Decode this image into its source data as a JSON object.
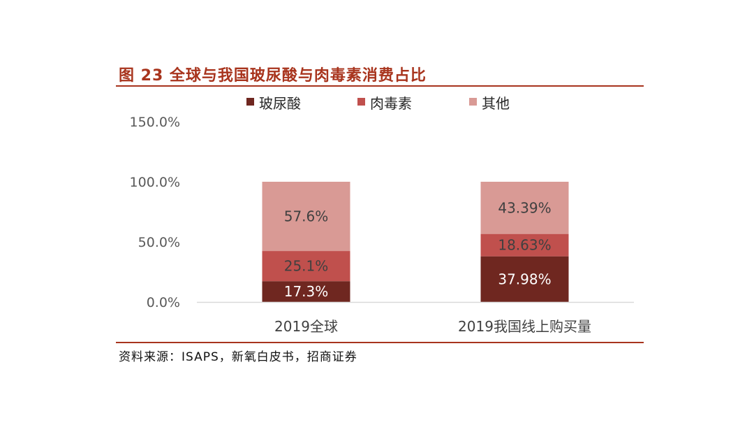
{
  "figure": {
    "title": "图 23  全球与我国玻尿酸与肉毒素消费占比",
    "source": "资料来源：ISAPS，新氧白皮书，招商证券"
  },
  "chart_data": {
    "type": "bar",
    "stacked": true,
    "categories": [
      "2019全球",
      "2019我国线上购买量"
    ],
    "series": [
      {
        "name": "玻尿酸",
        "values": [
          17.3,
          37.98
        ],
        "labels": [
          "17.3%",
          "37.98%"
        ],
        "color": "#6f2720"
      },
      {
        "name": "肉毒素",
        "values": [
          25.1,
          18.63
        ],
        "labels": [
          "25.1%",
          "18.63%"
        ],
        "color": "#c0504d"
      },
      {
        "name": "其他",
        "values": [
          57.6,
          43.39
        ],
        "labels": [
          "57.6%",
          "43.39%"
        ],
        "color": "#d99a95"
      }
    ],
    "ylim": [
      0,
      150
    ],
    "yticks": [
      0,
      50,
      100,
      150
    ],
    "ytick_labels": [
      "0.0%",
      "50.0%",
      "100.0%",
      "150.0%"
    ],
    "legend_position": "top",
    "grid": false
  },
  "colors": {
    "title": "#a8341d",
    "rule": "#a8341d",
    "label_dark": "#ffffff",
    "label_light": "#404040",
    "tick_text": "#595959",
    "axis_line": "#d9d9d9"
  }
}
